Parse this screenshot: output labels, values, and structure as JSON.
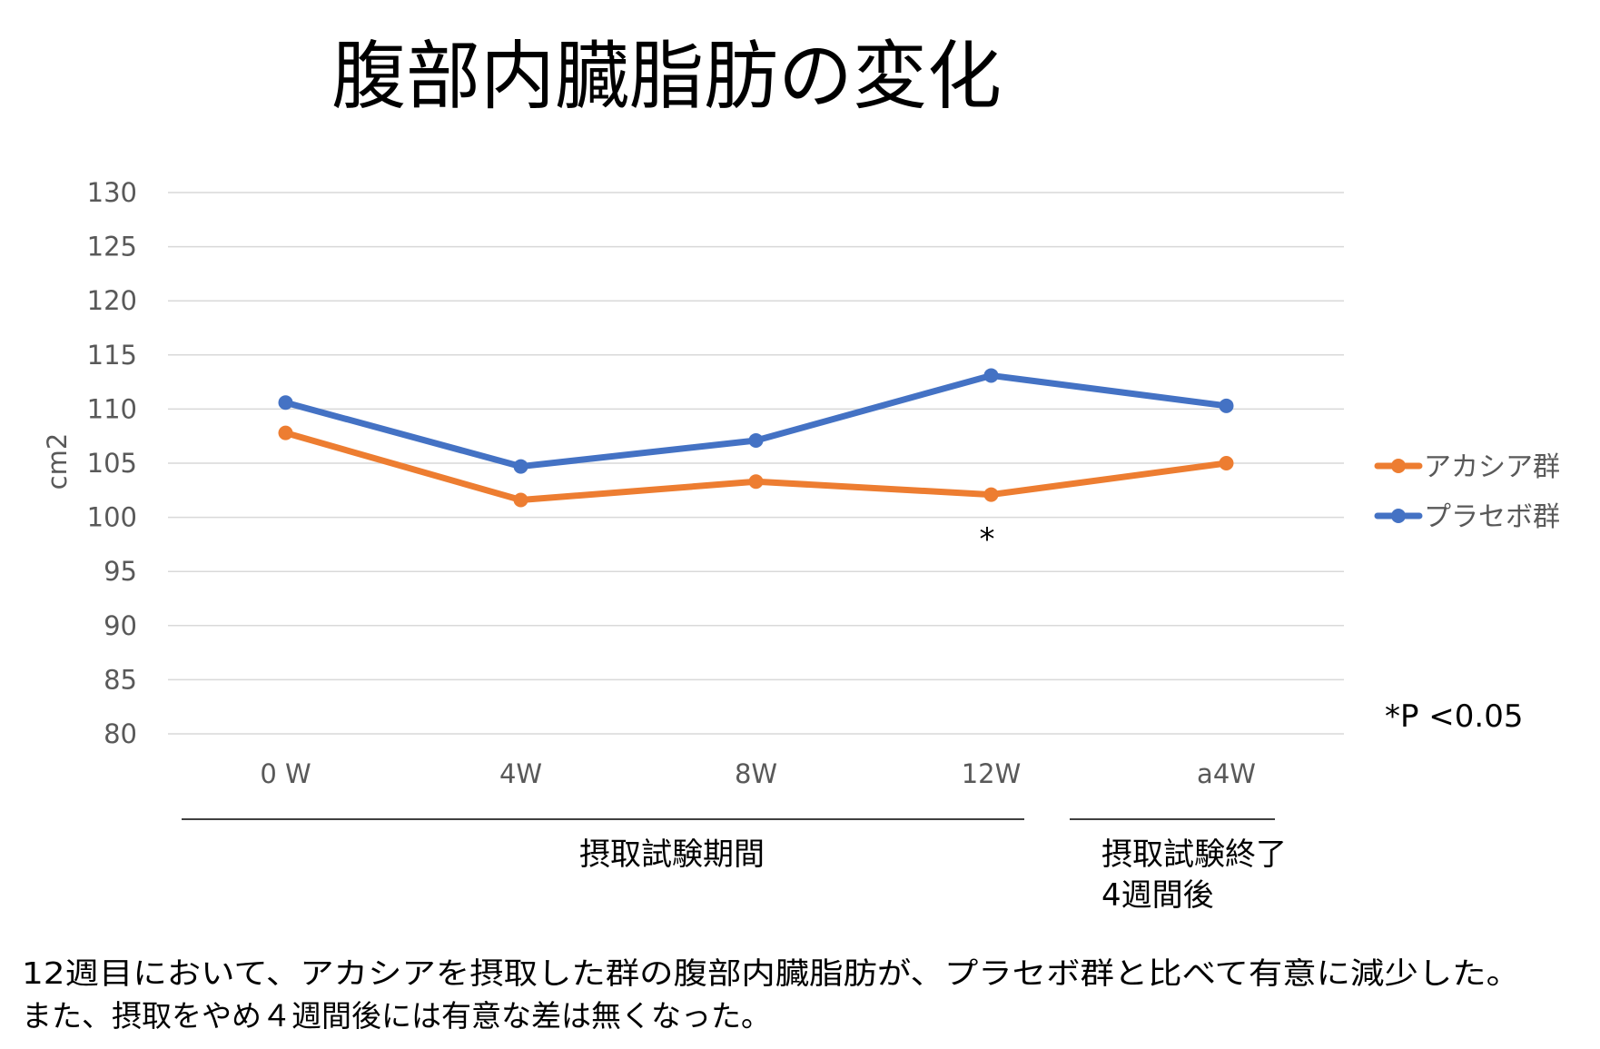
{
  "chart_data": {
    "type": "line",
    "title": "腹部内臓脂肪の変化",
    "ylabel": "cm2",
    "xlabel": "",
    "categories": [
      "0 W",
      "4W",
      "8W",
      "12W",
      "a4W"
    ],
    "ylim": [
      80,
      130
    ],
    "yticks": [
      80,
      85,
      90,
      95,
      100,
      105,
      110,
      115,
      120,
      125,
      130
    ],
    "grid": true,
    "legend_position": "right",
    "series": [
      {
        "name": "アカシア群",
        "color": "#ED7D31",
        "values": [
          107.8,
          101.6,
          103.3,
          102.1,
          105.0
        ]
      },
      {
        "name": "プラセボ群",
        "color": "#4472C4",
        "values": [
          110.6,
          104.7,
          107.1,
          113.1,
          110.3
        ]
      }
    ],
    "significance": {
      "marker": "*",
      "category": "12W",
      "note": "*P <0.05"
    },
    "period_labels": {
      "intake": "摂取試験期間",
      "after_line1": "摂取試験終了",
      "after_line2": "4週間後"
    }
  },
  "caption": {
    "line1": "12週目において、アカシアを摂取した群の腹部内臓脂肪が、プラセボ群と比べて有意に減少した。",
    "line2": "また、摂取をやめ４週間後には有意な差は無くなった。"
  }
}
